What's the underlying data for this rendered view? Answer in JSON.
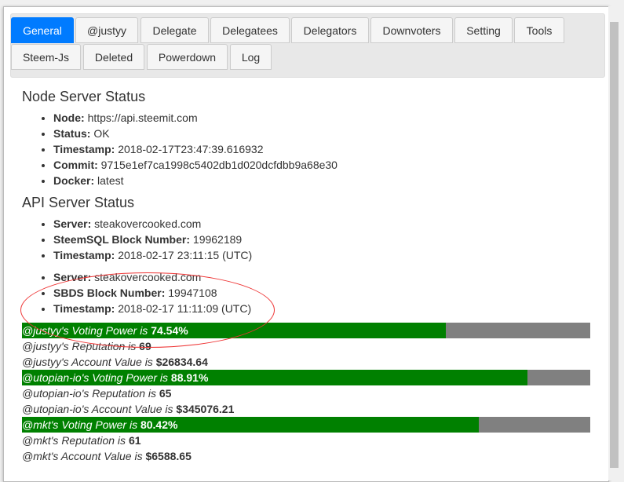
{
  "tabs": [
    "General",
    "@justyy",
    "Delegate",
    "Delegatees",
    "Delegators",
    "Downvoters",
    "Setting",
    "Tools",
    "Steem-Js",
    "Deleted",
    "Powerdown",
    "Log"
  ],
  "node": {
    "title": "Node Server Status",
    "items": [
      {
        "k": "Node:",
        "v": "https://api.steemit.com"
      },
      {
        "k": "Status:",
        "v": "OK"
      },
      {
        "k": "Timestamp:",
        "v": "2018-02-17T23:47:39.616932"
      },
      {
        "k": "Commit:",
        "v": "9715e1ef7ca1998c5402db1d020dcfdbb9a68e30"
      },
      {
        "k": "Docker:",
        "v": "latest"
      }
    ]
  },
  "api": {
    "title": "API Server Status",
    "list1": [
      {
        "k": "Server:",
        "v": "steakovercooked.com"
      },
      {
        "k": "SteemSQL Block Number:",
        "v": "19962189"
      },
      {
        "k": "Timestamp:",
        "v": "2018-02-17 23:11:15 (UTC)"
      }
    ],
    "list2": [
      {
        "k": "Server:",
        "v": "steakovercooked.com"
      },
      {
        "k": "SBDS Block Number:",
        "v": "19947108"
      },
      {
        "k": "Timestamp:",
        "v": "2018-02-17 11:11:09 (UTC)"
      }
    ]
  },
  "accounts": [
    {
      "vp_label": "@justyy's Voting Power is ",
      "vp": "74.54%",
      "vp_value": 74.54,
      "rep_label": "@justyy's Reputation is ",
      "rep": "69",
      "val_label": "@justyy's Account Value is ",
      "val": "$26834.64"
    },
    {
      "vp_label": "@utopian-io's Voting Power is ",
      "vp": "88.91%",
      "vp_value": 88.91,
      "rep_label": "@utopian-io's Reputation is ",
      "rep": "65",
      "val_label": "@utopian-io's Account Value is ",
      "val": "$345076.21"
    },
    {
      "vp_label": "@mkt's Voting Power is ",
      "vp": "80.42%",
      "vp_value": 80.42,
      "rep_label": "@mkt's Reputation is ",
      "rep": "61",
      "val_label": "@mkt's Account Value is ",
      "val": "$6588.65"
    }
  ]
}
